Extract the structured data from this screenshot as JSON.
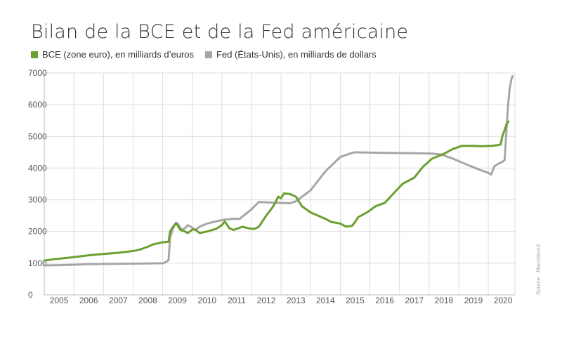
{
  "chart_data": {
    "type": "line",
    "title": "Bilan de la BCE et de la Fed américaine",
    "source": "Source : Macrobond",
    "ylim": [
      0,
      7000
    ],
    "yticks": [
      "0",
      "1000",
      "2000",
      "3000",
      "4000",
      "5000",
      "6000",
      "7000"
    ],
    "xlim": [
      2004.5,
      2020.4
    ],
    "xticks": [
      "2005",
      "2006",
      "2007",
      "2008",
      "2009",
      "2010",
      "2011",
      "2012",
      "2013",
      "2014",
      "2015",
      "2016",
      "2017",
      "2018",
      "2019",
      "2020"
    ],
    "grid": true,
    "legend_position": "top-left",
    "series": [
      {
        "name": "BCE (zone euro), en milliards d’euros",
        "color": "#6aa030",
        "points": [
          [
            2004.5,
            1080
          ],
          [
            2004.8,
            1120
          ],
          [
            2005.0,
            1140
          ],
          [
            2005.5,
            1190
          ],
          [
            2006.0,
            1250
          ],
          [
            2006.5,
            1290
          ],
          [
            2007.0,
            1330
          ],
          [
            2007.3,
            1360
          ],
          [
            2007.6,
            1400
          ],
          [
            2007.8,
            1450
          ],
          [
            2008.0,
            1520
          ],
          [
            2008.2,
            1600
          ],
          [
            2008.5,
            1660
          ],
          [
            2008.7,
            1680
          ],
          [
            2008.75,
            2000
          ],
          [
            2008.85,
            2150
          ],
          [
            2008.95,
            2250
          ],
          [
            2009.0,
            2200
          ],
          [
            2009.1,
            2050
          ],
          [
            2009.25,
            2000
          ],
          [
            2009.35,
            1950
          ],
          [
            2009.5,
            2060
          ],
          [
            2009.6,
            2060
          ],
          [
            2009.75,
            1950
          ],
          [
            2010.0,
            2000
          ],
          [
            2010.3,
            2080
          ],
          [
            2010.5,
            2200
          ],
          [
            2010.6,
            2320
          ],
          [
            2010.75,
            2100
          ],
          [
            2010.9,
            2050
          ],
          [
            2011.2,
            2150
          ],
          [
            2011.4,
            2100
          ],
          [
            2011.6,
            2080
          ],
          [
            2011.75,
            2150
          ],
          [
            2012.0,
            2500
          ],
          [
            2012.2,
            2750
          ],
          [
            2012.3,
            2900
          ],
          [
            2012.4,
            3100
          ],
          [
            2012.5,
            3050
          ],
          [
            2012.6,
            3200
          ],
          [
            2012.8,
            3180
          ],
          [
            2013.0,
            3100
          ],
          [
            2013.2,
            2800
          ],
          [
            2013.5,
            2600
          ],
          [
            2013.75,
            2500
          ],
          [
            2014.0,
            2400
          ],
          [
            2014.2,
            2300
          ],
          [
            2014.5,
            2250
          ],
          [
            2014.7,
            2150
          ],
          [
            2014.9,
            2180
          ],
          [
            2015.0,
            2300
          ],
          [
            2015.1,
            2450
          ],
          [
            2015.4,
            2600
          ],
          [
            2015.7,
            2800
          ],
          [
            2016.0,
            2900
          ],
          [
            2016.3,
            3200
          ],
          [
            2016.6,
            3500
          ],
          [
            2017.0,
            3700
          ],
          [
            2017.3,
            4050
          ],
          [
            2017.6,
            4300
          ],
          [
            2018.0,
            4450
          ],
          [
            2018.3,
            4600
          ],
          [
            2018.6,
            4700
          ],
          [
            2019.0,
            4700
          ],
          [
            2019.3,
            4690
          ],
          [
            2019.6,
            4700
          ],
          [
            2019.8,
            4720
          ],
          [
            2019.92,
            4750
          ],
          [
            2019.97,
            5000
          ],
          [
            2020.05,
            5200
          ],
          [
            2020.12,
            5400
          ],
          [
            2020.18,
            5470
          ]
        ]
      },
      {
        "name": "Fed (États-Unis), en milliards de dollars",
        "color": "#a6a6a6",
        "points": [
          [
            2004.5,
            930
          ],
          [
            2005.0,
            940
          ],
          [
            2005.5,
            950
          ],
          [
            2006.0,
            970
          ],
          [
            2007.0,
            980
          ],
          [
            2008.0,
            990
          ],
          [
            2008.5,
            1000
          ],
          [
            2008.6,
            1030
          ],
          [
            2008.7,
            1100
          ],
          [
            2008.75,
            1800
          ],
          [
            2008.85,
            2100
          ],
          [
            2008.95,
            2280
          ],
          [
            2009.0,
            2250
          ],
          [
            2009.15,
            2050
          ],
          [
            2009.25,
            2100
          ],
          [
            2009.35,
            2200
          ],
          [
            2009.45,
            2150
          ],
          [
            2009.6,
            2050
          ],
          [
            2009.75,
            2150
          ],
          [
            2010.0,
            2250
          ],
          [
            2010.3,
            2320
          ],
          [
            2010.6,
            2380
          ],
          [
            2010.9,
            2400
          ],
          [
            2011.1,
            2400
          ],
          [
            2011.3,
            2550
          ],
          [
            2011.5,
            2700
          ],
          [
            2011.75,
            2930
          ],
          [
            2012.0,
            2920
          ],
          [
            2012.5,
            2900
          ],
          [
            2012.8,
            2890
          ],
          [
            2013.0,
            2950
          ],
          [
            2013.5,
            3300
          ],
          [
            2014.0,
            3900
          ],
          [
            2014.5,
            4350
          ],
          [
            2014.9,
            4480
          ],
          [
            2015.0,
            4500
          ],
          [
            2016.0,
            4480
          ],
          [
            2017.0,
            4470
          ],
          [
            2017.6,
            4460
          ],
          [
            2017.9,
            4430
          ],
          [
            2018.3,
            4300
          ],
          [
            2018.8,
            4100
          ],
          [
            2019.2,
            3950
          ],
          [
            2019.5,
            3850
          ],
          [
            2019.6,
            3800
          ],
          [
            2019.7,
            4050
          ],
          [
            2019.85,
            4150
          ],
          [
            2019.98,
            4200
          ],
          [
            2020.05,
            4250
          ],
          [
            2020.1,
            5000
          ],
          [
            2020.16,
            5900
          ],
          [
            2020.22,
            6500
          ],
          [
            2020.28,
            6800
          ],
          [
            2020.32,
            6900
          ]
        ]
      }
    ]
  },
  "legend": {
    "ecb_label": "BCE (zone euro), en milliards d’euros",
    "fed_label": "Fed (États-Unis), en milliards de dollars"
  },
  "colors": {
    "ecb": "#6aa030",
    "fed": "#a6a6a6",
    "grid": "#dcdcdc",
    "axis": "#bdbdbd"
  }
}
